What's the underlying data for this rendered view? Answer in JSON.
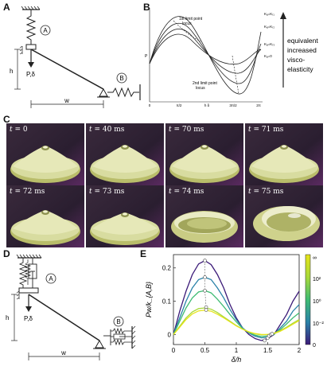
{
  "panels": {
    "a": "A",
    "b": "B",
    "c": "C",
    "d": "D",
    "e": "E"
  },
  "panel_a": {
    "spring_a_label": "A",
    "spring_b_label": "B",
    "h_label": "h",
    "w_label": "w",
    "load_label": "P,δ"
  },
  "panel_b": {
    "locus1_line1": "1st limit point",
    "locus1_line2": "locus",
    "locus2_line1": "2nd limit point",
    "locus2_line2": "locus",
    "curve_labels": [
      "Kₐ=Kᵣ₁",
      "Kₐ=Kᵣ₂",
      "Kₐ=Kᵣ₃",
      "Kₐ=0"
    ],
    "x_ticks": [
      "0",
      "π/2",
      "h\nδ",
      "3π/2",
      "2π"
    ],
    "y_label": "P",
    "arrow_text": [
      "equivalent",
      "increased",
      "visco-",
      "elasticity"
    ]
  },
  "panel_c": {
    "frames": [
      {
        "t": "t = ",
        "v": "0"
      },
      {
        "t": "t = ",
        "v": "40 ms"
      },
      {
        "t": "t = ",
        "v": "70 ms"
      },
      {
        "t": "t = ",
        "v": "71 ms"
      },
      {
        "t": "t = ",
        "v": "72 ms"
      },
      {
        "t": "t = ",
        "v": "73 ms"
      },
      {
        "t": "t = ",
        "v": "74 ms"
      },
      {
        "t": "t = ",
        "v": "75 ms"
      }
    ]
  },
  "panel_d": {
    "spring_a_label": "A",
    "spring_b_label": "B",
    "h_label": "h",
    "w_label": "w",
    "load_label": "P,δ"
  },
  "chart_data": {
    "type": "line",
    "xlabel": "δ/h",
    "ylabel": "Pw/k_{A,B}",
    "xlim": [
      0,
      2
    ],
    "ylim": [
      -0.03,
      0.24
    ],
    "x_ticks": [
      "0",
      "0.5",
      "1",
      "1.5",
      "2"
    ],
    "y_ticks": [
      "0",
      "0.1",
      "0.2"
    ],
    "colorbar_ticks": [
      "∞",
      "10²",
      "10⁰",
      "10⁻²",
      "0"
    ],
    "series": [
      {
        "color": "#3b1a78",
        "x": [
          0,
          0.1,
          0.2,
          0.3,
          0.4,
          0.5,
          0.6,
          0.7,
          0.8,
          0.9,
          1.0,
          1.1,
          1.2,
          1.3,
          1.4,
          1.5,
          1.6,
          1.7,
          1.8,
          1.9,
          2.0
        ],
        "y": [
          0,
          0.07,
          0.13,
          0.18,
          0.212,
          0.222,
          0.21,
          0.18,
          0.14,
          0.09,
          0.05,
          0.02,
          0.0,
          -0.012,
          -0.018,
          -0.012,
          0.0,
          0.03,
          0.06,
          0.1,
          0.13
        ]
      },
      {
        "color": "#2a82a8",
        "x": [
          0,
          0.1,
          0.2,
          0.3,
          0.4,
          0.5,
          0.6,
          0.7,
          0.8,
          0.9,
          1.0,
          1.1,
          1.2,
          1.3,
          1.4,
          1.5,
          1.6,
          1.7,
          1.8,
          1.9,
          2.0
        ],
        "y": [
          0,
          0.05,
          0.1,
          0.14,
          0.165,
          0.172,
          0.165,
          0.14,
          0.11,
          0.075,
          0.045,
          0.02,
          0.005,
          -0.005,
          -0.01,
          -0.008,
          0.0,
          0.02,
          0.04,
          0.07,
          0.09
        ]
      },
      {
        "color": "#3fbc73",
        "x": [
          0,
          0.1,
          0.2,
          0.3,
          0.4,
          0.5,
          0.6,
          0.7,
          0.8,
          0.9,
          1.0,
          1.1,
          1.2,
          1.3,
          1.4,
          1.5,
          1.6,
          1.7,
          1.8,
          1.9,
          2.0
        ],
        "y": [
          0,
          0.04,
          0.08,
          0.11,
          0.128,
          0.132,
          0.125,
          0.106,
          0.084,
          0.06,
          0.038,
          0.018,
          0.006,
          -0.002,
          -0.006,
          -0.004,
          0.002,
          0.015,
          0.032,
          0.05,
          0.065
        ]
      },
      {
        "color": "#a8d93a",
        "x": [
          0,
          0.1,
          0.2,
          0.3,
          0.4,
          0.5,
          0.6,
          0.7,
          0.8,
          0.9,
          1.0,
          1.1,
          1.2,
          1.3,
          1.4,
          1.5,
          1.6,
          1.7,
          1.8,
          1.9,
          2.0
        ],
        "y": [
          0,
          0.025,
          0.05,
          0.068,
          0.078,
          0.08,
          0.076,
          0.066,
          0.053,
          0.04,
          0.027,
          0.016,
          0.008,
          0.002,
          -0.001,
          0.0,
          0.004,
          0.012,
          0.022,
          0.034,
          0.045
        ]
      },
      {
        "color": "#e6e419",
        "x": [
          0,
          0.1,
          0.2,
          0.3,
          0.4,
          0.5,
          0.6,
          0.7,
          0.8,
          0.9,
          1.0,
          1.1,
          1.2,
          1.3,
          1.4,
          1.5,
          1.6,
          1.7,
          1.8,
          1.9,
          2.0
        ],
        "y": [
          0,
          0.022,
          0.045,
          0.062,
          0.071,
          0.073,
          0.07,
          0.061,
          0.05,
          0.038,
          0.026,
          0.016,
          0.008,
          0.003,
          0.0,
          0.0,
          0.003,
          0.01,
          0.02,
          0.031,
          0.042
        ]
      }
    ],
    "limit_points_1": [
      [
        0.5,
        0.222
      ],
      [
        0.5,
        0.172
      ],
      [
        0.5,
        0.132
      ],
      [
        0.52,
        0.082
      ],
      [
        0.52,
        0.074
      ]
    ],
    "limit_points_2": [
      [
        1.45,
        -0.018
      ],
      [
        1.5,
        -0.01
      ],
      [
        1.52,
        -0.004
      ],
      [
        1.55,
        0.0
      ],
      [
        1.57,
        0.002
      ]
    ]
  }
}
